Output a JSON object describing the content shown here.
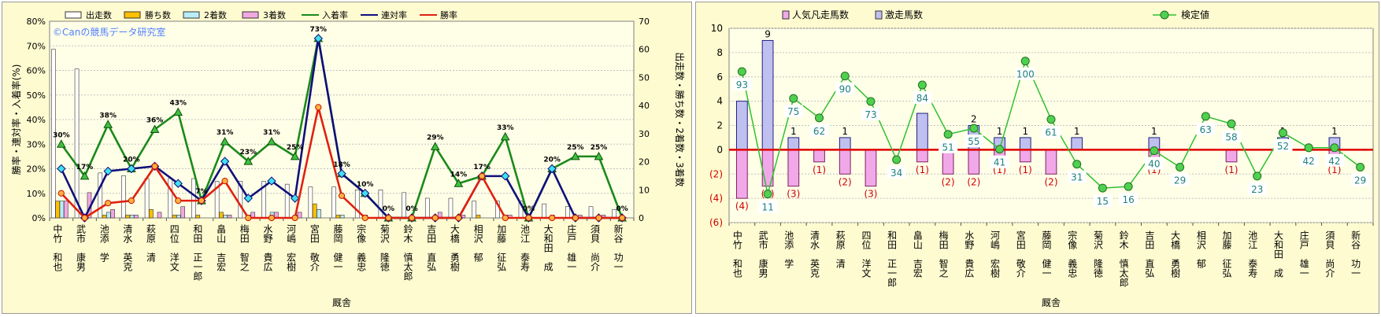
{
  "jockeys": [
    "中竹　和也",
    "武市　康男",
    "池添　学",
    "清水　英克",
    "萩原　清",
    "四位　洋文",
    "和田　正一郎",
    "畠山　吉宏",
    "梅田　智之",
    "水野　貴広",
    "河嶋　宏樹",
    "宮田　敬介",
    "藤岡　健一",
    "宗像　義忠",
    "菊沢　隆徳",
    "鈴木　慎太郎",
    "吉田　直弘",
    "大橋　勇樹",
    "相沢　郁",
    "加藤　征弘",
    "池江　泰寿",
    "大和田　成",
    "庄戸　雄一",
    "須貝　尚介",
    "新谷　功一"
  ],
  "chart_data": [
    {
      "type": "bar+line",
      "watermark": "©Canの競馬データ研究室",
      "xlabel": "厩舎",
      "ylabel_left": "勝率・連対率・入着率(%)",
      "ylabel_right": "出走数・勝ち数・2着数・3着数",
      "ylim_left": [
        0,
        80
      ],
      "ylim_right": [
        0,
        70
      ],
      "left_ticks": [
        "0%",
        "10%",
        "20%",
        "30%",
        "40%",
        "50%",
        "60%",
        "70%",
        "80%"
      ],
      "right_ticks": [
        "0",
        "10",
        "20",
        "30",
        "40",
        "50",
        "60",
        "70"
      ],
      "legend": [
        {
          "name": "出走数",
          "kind": "bar",
          "color": "#ffffff"
        },
        {
          "name": "勝ち数",
          "kind": "bar",
          "color": "#ffc000"
        },
        {
          "name": "2着数",
          "kind": "bar",
          "color": "#b8ecf8"
        },
        {
          "name": "3着数",
          "kind": "bar",
          "color": "#f0a8e0"
        },
        {
          "name": "入着率",
          "kind": "line",
          "color": "#1a8a1a"
        },
        {
          "name": "連対率",
          "kind": "line",
          "color": "#10107a"
        },
        {
          "name": "勝率",
          "kind": "line",
          "color": "#e02010"
        }
      ],
      "bars": {
        "出走数": [
          60,
          53,
          16,
          15,
          14,
          14,
          14,
          13,
          13,
          13,
          12,
          11,
          11,
          10,
          10,
          9,
          7,
          7,
          6,
          6,
          6,
          5,
          4,
          4,
          3
        ],
        "勝ち数": [
          6,
          0,
          1,
          1,
          3,
          1,
          1,
          2,
          0,
          0,
          0,
          5,
          1,
          0,
          0,
          0,
          0,
          0,
          1,
          0,
          0,
          0,
          0,
          0,
          0
        ],
        "2着数": [
          6,
          0,
          2,
          1,
          0,
          1,
          0,
          1,
          1,
          2,
          1,
          3,
          1,
          1,
          0,
          0,
          0,
          0,
          0,
          1,
          0,
          1,
          0,
          0,
          0
        ],
        "3着数": [
          6,
          9,
          3,
          1,
          2,
          4,
          0,
          1,
          2,
          2,
          2,
          0,
          0,
          0,
          0,
          0,
          2,
          1,
          0,
          1,
          0,
          0,
          1,
          1,
          0
        ]
      },
      "lines": {
        "入着率": [
          30,
          17,
          38,
          20,
          36,
          43,
          7,
          31,
          23,
          31,
          25,
          73,
          18,
          10,
          0,
          0,
          29,
          14,
          17,
          33,
          0,
          20,
          25,
          25,
          0
        ],
        "連対率": [
          20,
          0,
          19,
          20,
          21,
          14,
          7,
          23,
          8,
          15,
          8,
          73,
          18,
          10,
          0,
          0,
          0,
          0,
          17,
          17,
          0,
          20,
          0,
          0,
          0
        ],
        "勝率": [
          10,
          0,
          6,
          7,
          21,
          7,
          7,
          15,
          0,
          0,
          0,
          45,
          9,
          0,
          0,
          0,
          0,
          0,
          17,
          0,
          0,
          0,
          0,
          0,
          0
        ]
      },
      "labels_entry": [
        "30%",
        "17%",
        "38%",
        "20%",
        "36%",
        "43%",
        "7%",
        "31%",
        "23%",
        "31%",
        "25%",
        "73%",
        "18%",
        "10%",
        "0%",
        "0%",
        "29%",
        "14%",
        "17%",
        "33%",
        "0%",
        "20%",
        "25%",
        "25%",
        "0%"
      ]
    },
    {
      "type": "bar+line",
      "xlabel": "厩舎",
      "ylim": [
        -6,
        10
      ],
      "ticks": [
        "(6)",
        "(4)",
        "(2)",
        "0",
        "2",
        "4",
        "6",
        "8",
        "10"
      ],
      "legend": [
        {
          "name": "人気凡走馬数",
          "kind": "bar",
          "color": "#f0a8e8"
        },
        {
          "name": "激走馬数",
          "kind": "bar",
          "color": "#c0c0f0"
        },
        {
          "name": "検定値",
          "kind": "line",
          "color": "#30c030"
        }
      ],
      "激走馬数": [
        4,
        9,
        1,
        0,
        1,
        0,
        0,
        3,
        0,
        2,
        1,
        1,
        0,
        1,
        0,
        0,
        1,
        0,
        0,
        0,
        0,
        1,
        0,
        1,
        0
      ],
      "人気凡走馬数": [
        4,
        3,
        3,
        1,
        2,
        3,
        0,
        1,
        2,
        2,
        1,
        1,
        2,
        0,
        0,
        0,
        1,
        0,
        0,
        1,
        0,
        0,
        0,
        1,
        0
      ],
      "検定値": [
        93,
        11,
        75,
        62,
        90,
        73,
        34,
        84,
        51,
        55,
        41,
        100,
        61,
        31,
        15,
        16,
        40,
        29,
        63,
        58,
        23,
        52,
        42,
        42,
        29
      ],
      "labels_top": [
        "",
        "9",
        "1",
        "",
        "1",
        "",
        "",
        "",
        "",
        "2",
        "1",
        "1",
        "",
        "1",
        "",
        "",
        "1",
        "",
        "",
        "",
        "",
        "1",
        "",
        "1",
        ""
      ],
      "labels_neg": [
        "(4)",
        "(3)",
        "(3)",
        "(1)",
        "(2)",
        "(3)",
        "",
        "(1)",
        "(2)",
        "(2)",
        "(1)",
        "(1)",
        "(2)",
        "",
        "",
        "",
        "(1)",
        "",
        "",
        "(1)",
        "",
        "",
        "",
        "(1)",
        ""
      ]
    }
  ]
}
